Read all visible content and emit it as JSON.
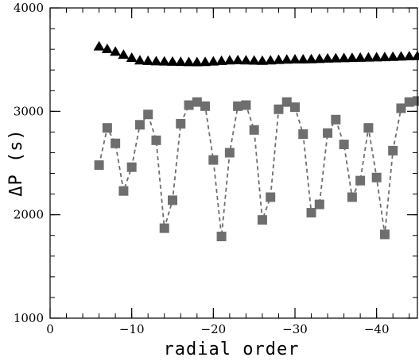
{
  "chart_data": {
    "type": "scatter",
    "xlabel": "radial order",
    "ylabel": "ΔP (s)",
    "xlim": [
      0,
      -45
    ],
    "ylim": [
      1000,
      4000
    ],
    "x_ticks_major": [
      0,
      -10,
      -20,
      -30,
      -40
    ],
    "x_tick_labels": [
      "0",
      "−10",
      "−20",
      "−30",
      "−40"
    ],
    "y_ticks_major": [
      1000,
      2000,
      3000,
      4000
    ],
    "y_tick_labels": [
      "1000",
      "2000",
      "3000",
      "4000"
    ],
    "x_minor_step": 2,
    "y_minor_step": 200,
    "grid": false,
    "series": [
      {
        "marker": "triangle",
        "color": "#000000",
        "line": "none",
        "x": [
          -6,
          -7,
          -8,
          -9,
          -10,
          -11,
          -12,
          -13,
          -14,
          -15,
          -16,
          -17,
          -18,
          -19,
          -20,
          -21,
          -22,
          -23,
          -24,
          -25,
          -26,
          -27,
          -28,
          -29,
          -30,
          -31,
          -32,
          -33,
          -34,
          -35,
          -36,
          -37,
          -38,
          -39,
          -40,
          -41,
          -42,
          -43,
          -44,
          -45
        ],
        "y": [
          3625,
          3600,
          3575,
          3545,
          3515,
          3490,
          3485,
          3482,
          3480,
          3478,
          3476,
          3474,
          3473,
          3475,
          3480,
          3485,
          3490,
          3492,
          3490,
          3488,
          3486,
          3490,
          3495,
          3498,
          3500,
          3500,
          3502,
          3505,
          3508,
          3510,
          3512,
          3514,
          3516,
          3518,
          3520,
          3522,
          3525,
          3528,
          3530,
          3532
        ]
      },
      {
        "marker": "square",
        "color": "#6e6e6e",
        "line": "dashed",
        "x": [
          -6,
          -7,
          -8,
          -9,
          -10,
          -11,
          -12,
          -13,
          -14,
          -15,
          -16,
          -17,
          -18,
          -19,
          -20,
          -21,
          -22,
          -23,
          -24,
          -25,
          -26,
          -27,
          -28,
          -29,
          -30,
          -31,
          -32,
          -33,
          -34,
          -35,
          -36,
          -37,
          -38,
          -39,
          -40,
          -41,
          -42,
          -43,
          -44,
          -45
        ],
        "y": [
          2480,
          2840,
          2690,
          2230,
          2460,
          2870,
          2970,
          2720,
          1870,
          2140,
          2880,
          3060,
          3090,
          3050,
          2530,
          1790,
          2600,
          3050,
          3060,
          2820,
          1950,
          2170,
          3020,
          3090,
          3040,
          2780,
          2020,
          2100,
          2790,
          2920,
          2680,
          2170,
          2330,
          2840,
          2360,
          1810,
          2620,
          3030,
          3090,
          3100
        ]
      }
    ]
  }
}
